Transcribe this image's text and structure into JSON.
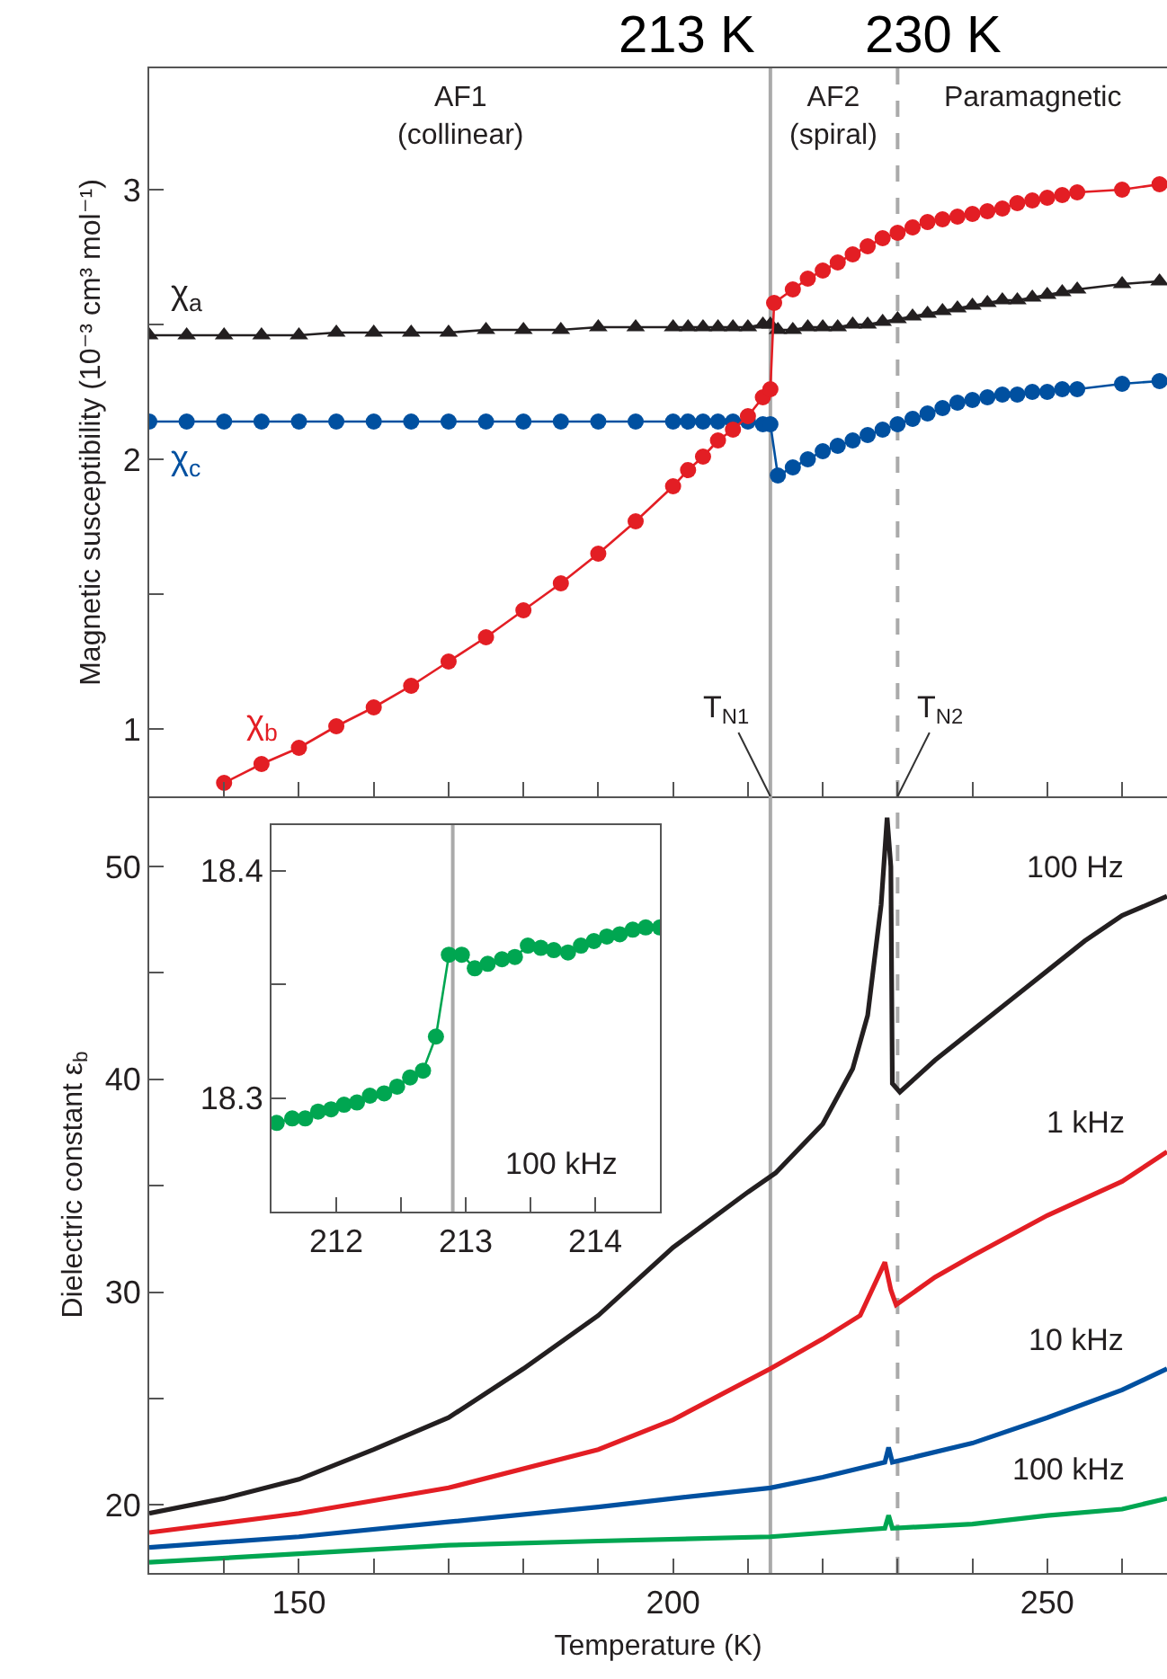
{
  "chart_data": [
    {
      "type": "line",
      "ylabel": "Magnetic susceptibility (10⁻³ cm³ mol⁻¹)",
      "xlim": [
        130,
        266
      ],
      "xticks": [
        {
          "value": 140,
          "label": null
        },
        150,
        {
          "value": 160,
          "label": null
        },
        {
          "value": 170,
          "label": null
        },
        {
          "value": 180,
          "label": null
        },
        {
          "value": 190,
          "label": null
        },
        200,
        {
          "value": 210,
          "label": null
        },
        {
          "value": 220,
          "label": null
        },
        {
          "value": 230,
          "label": null
        },
        {
          "value": 240,
          "label": null
        },
        250,
        {
          "value": 260,
          "label": null
        }
      ],
      "ylim": [
        0.75,
        3.45
      ],
      "yticks": [
        1,
        {
          "value": 1.5,
          "label": null
        },
        2,
        {
          "value": 2.5,
          "label": null
        },
        3
      ],
      "tick_labels": "y",
      "grid": false,
      "legend": false,
      "marker": "circle",
      "series": [
        {
          "name": "χ$_{a}$",
          "color": "#231f20",
          "marker": "triangle",
          "x": [
            130,
            135,
            140,
            145,
            150,
            155,
            160,
            165,
            170,
            175,
            180,
            185,
            190,
            195,
            200,
            202,
            204,
            206,
            208,
            210,
            212,
            213,
            214,
            216,
            218,
            220,
            222,
            224,
            226,
            228,
            230,
            232,
            234,
            236,
            238,
            240,
            242,
            244,
            246,
            248,
            250,
            252,
            254,
            260,
            265
          ],
          "values": [
            2.46,
            2.46,
            2.46,
            2.46,
            2.46,
            2.47,
            2.47,
            2.47,
            2.47,
            2.48,
            2.48,
            2.48,
            2.49,
            2.49,
            2.49,
            2.49,
            2.49,
            2.49,
            2.49,
            2.49,
            2.5,
            2.5,
            2.48,
            2.48,
            2.49,
            2.49,
            2.49,
            2.5,
            2.5,
            2.51,
            2.52,
            2.53,
            2.54,
            2.55,
            2.56,
            2.57,
            2.58,
            2.59,
            2.59,
            2.6,
            2.61,
            2.62,
            2.63,
            2.65,
            2.66
          ]
        },
        {
          "name": "χ$_{c}$",
          "color": "#0050a0",
          "x": [
            130,
            135,
            140,
            145,
            150,
            155,
            160,
            165,
            170,
            175,
            180,
            185,
            190,
            195,
            200,
            202,
            204,
            206,
            208,
            210,
            212,
            213,
            214,
            216,
            218,
            220,
            222,
            224,
            226,
            228,
            230,
            232,
            234,
            236,
            238,
            240,
            242,
            244,
            246,
            248,
            250,
            252,
            254,
            260,
            265
          ],
          "values": [
            2.14,
            2.14,
            2.14,
            2.14,
            2.14,
            2.14,
            2.14,
            2.14,
            2.14,
            2.14,
            2.14,
            2.14,
            2.14,
            2.14,
            2.14,
            2.14,
            2.14,
            2.14,
            2.14,
            2.14,
            2.13,
            2.13,
            1.94,
            1.97,
            2.0,
            2.03,
            2.05,
            2.07,
            2.09,
            2.11,
            2.13,
            2.15,
            2.17,
            2.19,
            2.21,
            2.22,
            2.23,
            2.24,
            2.24,
            2.25,
            2.25,
            2.26,
            2.26,
            2.28,
            2.29
          ]
        },
        {
          "name": "χ$_{b}$",
          "color": "#e31e24",
          "x": [
            140,
            145,
            150,
            155,
            160,
            165,
            170,
            175,
            180,
            185,
            190,
            195,
            200,
            202,
            204,
            206,
            208,
            210,
            212,
            213,
            213.5,
            216,
            218,
            220,
            222,
            224,
            226,
            228,
            230,
            232,
            234,
            236,
            238,
            240,
            242,
            244,
            246,
            248,
            250,
            252,
            254,
            260,
            265
          ],
          "values": [
            0.8,
            0.87,
            0.93,
            1.01,
            1.08,
            1.16,
            1.25,
            1.34,
            1.44,
            1.54,
            1.65,
            1.77,
            1.9,
            1.96,
            2.01,
            2.07,
            2.11,
            2.16,
            2.23,
            2.26,
            2.58,
            2.63,
            2.67,
            2.7,
            2.73,
            2.76,
            2.79,
            2.82,
            2.84,
            2.86,
            2.88,
            2.89,
            2.9,
            2.91,
            2.92,
            2.93,
            2.95,
            2.96,
            2.97,
            2.98,
            2.99,
            3.0,
            3.02
          ]
        }
      ],
      "ref_lines": [
        {
          "axis": "x",
          "value": 213,
          "label": "213 K",
          "color": "#aaaaaa",
          "line_style": "solid"
        },
        {
          "axis": "x",
          "value": 230,
          "label": "230 K",
          "color": "#aaaaaa",
          "line_style": "dashed"
        }
      ],
      "annotations": [
        "AF1\n(collinear)",
        "AF2\n(spiral)",
        "Paramagnetic",
        {
          "text": "T$_{N1}$",
          "x": 213,
          "y": 0.75
        },
        {
          "text": "T$_{N2}$",
          "x": 230,
          "y": 0.75
        }
      ]
    },
    {
      "type": "line",
      "xlabel": "Temperature (K)",
      "ylabel": "Dielectric constant ε$_{b}$",
      "xlim": [
        130,
        266
      ],
      "xticks": [
        {
          "value": 140,
          "label": null
        },
        150,
        {
          "value": 160,
          "label": null
        },
        {
          "value": 170,
          "label": null
        },
        {
          "value": 180,
          "label": null
        },
        {
          "value": 190,
          "label": null
        },
        200,
        {
          "value": 210,
          "label": null
        },
        {
          "value": 220,
          "label": null
        },
        {
          "value": 230,
          "label": null
        },
        {
          "value": 240,
          "label": null
        },
        250,
        {
          "value": 260,
          "label": null
        }
      ],
      "ylim": [
        16.8,
        53.3
      ],
      "yticks": [
        20,
        {
          "value": 25,
          "label": null
        },
        30,
        {
          "value": 35,
          "label": null
        },
        40,
        {
          "value": 45,
          "label": null
        },
        50
      ],
      "grid": false,
      "legend": false,
      "marker": "none",
      "series": [
        {
          "name": "100 Hz",
          "color": "#231f20",
          "x": [
            130,
            140,
            150,
            160,
            170,
            180,
            190,
            200,
            210,
            213.7,
            220,
            224,
            226,
            227.8,
            228.6,
            229.1,
            229.3,
            230.3,
            235,
            240,
            245,
            250,
            255,
            260,
            266
          ],
          "values": [
            19.6,
            20.3,
            21.2,
            22.6,
            24.1,
            26.4,
            28.9,
            32.1,
            34.7,
            35.6,
            37.9,
            40.5,
            43.0,
            48.2,
            52.3,
            50,
            39.8,
            39.4,
            40.9,
            42.3,
            43.7,
            45.1,
            46.5,
            47.7,
            48.6
          ]
        },
        {
          "name": "1 kHz",
          "color": "#e31e24",
          "x": [
            130,
            150,
            170,
            190,
            200,
            213,
            220,
            225,
            228.3,
            229.1,
            229.8,
            235,
            240,
            250,
            260,
            266
          ],
          "values": [
            18.7,
            19.6,
            20.8,
            22.6,
            24.0,
            26.4,
            27.8,
            28.9,
            31.4,
            30.1,
            29.4,
            30.7,
            31.7,
            33.6,
            35.2,
            36.6
          ]
        },
        {
          "name": "10 kHz",
          "color": "#0050a0",
          "x": [
            130,
            150,
            170,
            190,
            200,
            213,
            220,
            228.3,
            228.8,
            229.3,
            240,
            250,
            260,
            266
          ],
          "values": [
            18.0,
            18.5,
            19.2,
            19.9,
            20.3,
            20.8,
            21.3,
            22.0,
            22.7,
            22.0,
            22.9,
            24.1,
            25.4,
            26.4
          ]
        },
        {
          "name": "100 kHz",
          "color": "#00a651",
          "x": [
            130,
            150,
            170,
            190,
            213,
            228.3,
            228.8,
            229.3,
            240,
            250,
            260,
            266
          ],
          "values": [
            17.3,
            17.7,
            18.1,
            18.3,
            18.5,
            18.9,
            19.5,
            18.9,
            19.1,
            19.5,
            19.8,
            20.3
          ]
        }
      ],
      "ref_lines": [
        {
          "axis": "x",
          "value": 213,
          "color": "#aaaaaa",
          "line_style": "solid"
        },
        {
          "axis": "x",
          "value": 230,
          "color": "#aaaaaa",
          "line_style": "dashed"
        }
      ]
    },
    {
      "type": "line",
      "xlim": [
        211.5,
        214.5
      ],
      "xticks": [
        212,
        {
          "value": 212.5,
          "label": null
        },
        213,
        {
          "value": 213.5,
          "label": null
        },
        214
      ],
      "ylim": [
        18.25,
        18.42
      ],
      "yticks": [
        18.3,
        {
          "value": 18.35,
          "label": null
        },
        18.4
      ],
      "grid": false,
      "legend": false,
      "marker": "circle",
      "series": [
        {
          "name": "100 kHz",
          "color": "#00a651",
          "x": [
            211.54,
            211.66,
            211.76,
            211.86,
            211.96,
            212.06,
            212.16,
            212.26,
            212.37,
            212.47,
            212.57,
            212.67,
            212.77,
            212.87,
            212.97,
            213.07,
            213.17,
            213.28,
            213.38,
            213.48,
            213.58,
            213.68,
            213.79,
            213.89,
            213.99,
            214.09,
            214.19,
            214.29,
            214.39,
            214.5
          ],
          "values": [
            18.289,
            18.291,
            18.291,
            18.294,
            18.295,
            18.297,
            18.298,
            18.301,
            18.302,
            18.305,
            18.309,
            18.312,
            18.327,
            18.363,
            18.363,
            18.357,
            18.359,
            18.361,
            18.362,
            18.367,
            18.366,
            18.365,
            18.364,
            18.367,
            18.369,
            18.371,
            18.372,
            18.374,
            18.375,
            18.375
          ]
        }
      ],
      "ref_lines": [
        {
          "axis": "x",
          "value": 212.9,
          "color": "#aaaaaa",
          "line_style": "solid"
        }
      ]
    }
  ]
}
